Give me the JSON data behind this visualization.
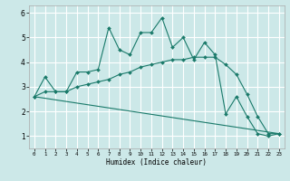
{
  "xlabel": "Humidex (Indice chaleur)",
  "bg_color": "#cce8e8",
  "grid_color": "#ffffff",
  "line_color": "#1a7a6a",
  "x_ticks": [
    0,
    1,
    2,
    3,
    4,
    5,
    6,
    7,
    8,
    9,
    10,
    11,
    12,
    13,
    14,
    15,
    16,
    17,
    18,
    19,
    20,
    21,
    22,
    23
  ],
  "y_ticks": [
    1,
    2,
    3,
    4,
    5,
    6
  ],
  "ylim": [
    0.5,
    6.3
  ],
  "xlim": [
    -0.5,
    23.5
  ],
  "series1_x": [
    0,
    1,
    2,
    3,
    4,
    5,
    6,
    7,
    8,
    9,
    10,
    11,
    12,
    13,
    14,
    15,
    16,
    17,
    18,
    19,
    20,
    21,
    22,
    23
  ],
  "series1_y": [
    2.6,
    3.4,
    2.8,
    2.8,
    3.6,
    3.6,
    3.7,
    5.4,
    4.5,
    4.3,
    5.2,
    5.2,
    5.8,
    4.6,
    5.0,
    4.1,
    4.8,
    4.3,
    1.9,
    2.6,
    1.8,
    1.1,
    1.0,
    1.1
  ],
  "series2_x": [
    0,
    1,
    2,
    3,
    4,
    5,
    6,
    7,
    8,
    9,
    10,
    11,
    12,
    13,
    14,
    15,
    16,
    17,
    18,
    19,
    20,
    21,
    22,
    23
  ],
  "series2_y": [
    2.6,
    2.8,
    2.8,
    2.8,
    3.0,
    3.1,
    3.2,
    3.3,
    3.5,
    3.6,
    3.8,
    3.9,
    4.0,
    4.1,
    4.1,
    4.2,
    4.2,
    4.2,
    3.9,
    3.5,
    2.7,
    1.8,
    1.1,
    1.1
  ],
  "series3_x": [
    0,
    23
  ],
  "series3_y": [
    2.6,
    1.1
  ]
}
